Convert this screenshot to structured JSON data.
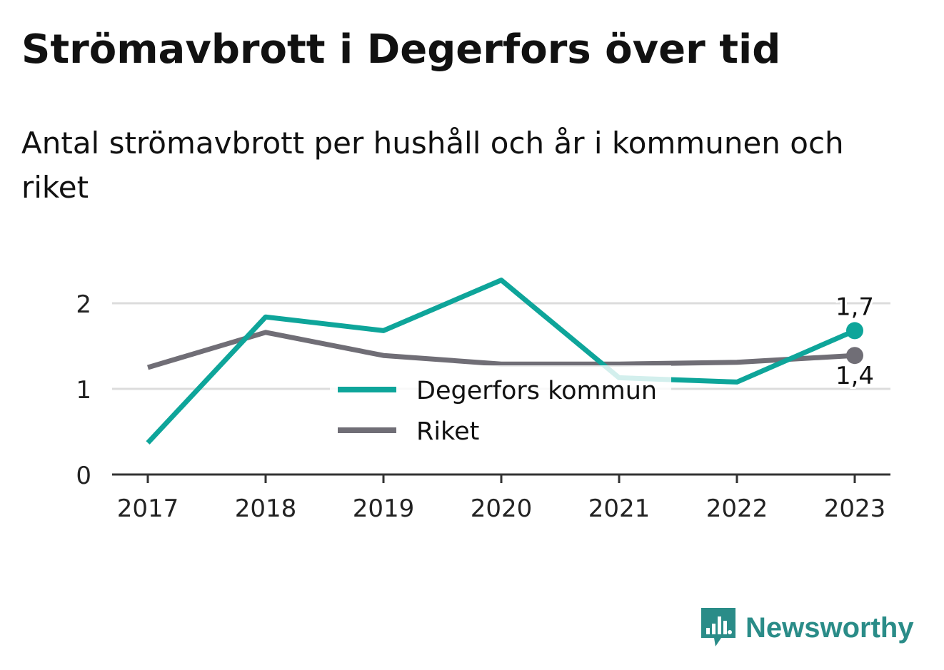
{
  "title": "Strömavbrott i Degerfors över tid",
  "subtitle": "Antal strömavbrott per hushåll och år i kommunen och riket",
  "brand": {
    "name": "Newsworthy",
    "icon": "bar-chart-speech-bubble-icon",
    "color": "#2a8c88"
  },
  "chart_data": {
    "type": "line",
    "x": [
      "2017",
      "2018",
      "2019",
      "2020",
      "2021",
      "2022",
      "2023"
    ],
    "ylim": [
      0,
      2.5
    ],
    "yticks": [
      "0",
      "1",
      "2"
    ],
    "grid": true,
    "legend_position": "center",
    "series": [
      {
        "name": "Degerfors kommun",
        "color": "#0ea59a",
        "values": [
          0.37,
          1.84,
          1.68,
          2.27,
          1.13,
          1.08,
          1.68
        ],
        "end_label": "1,7"
      },
      {
        "name": "Riket",
        "color": "#706e76",
        "values": [
          1.25,
          1.66,
          1.39,
          1.29,
          1.29,
          1.31,
          1.39
        ],
        "end_label": "1,4"
      }
    ]
  }
}
